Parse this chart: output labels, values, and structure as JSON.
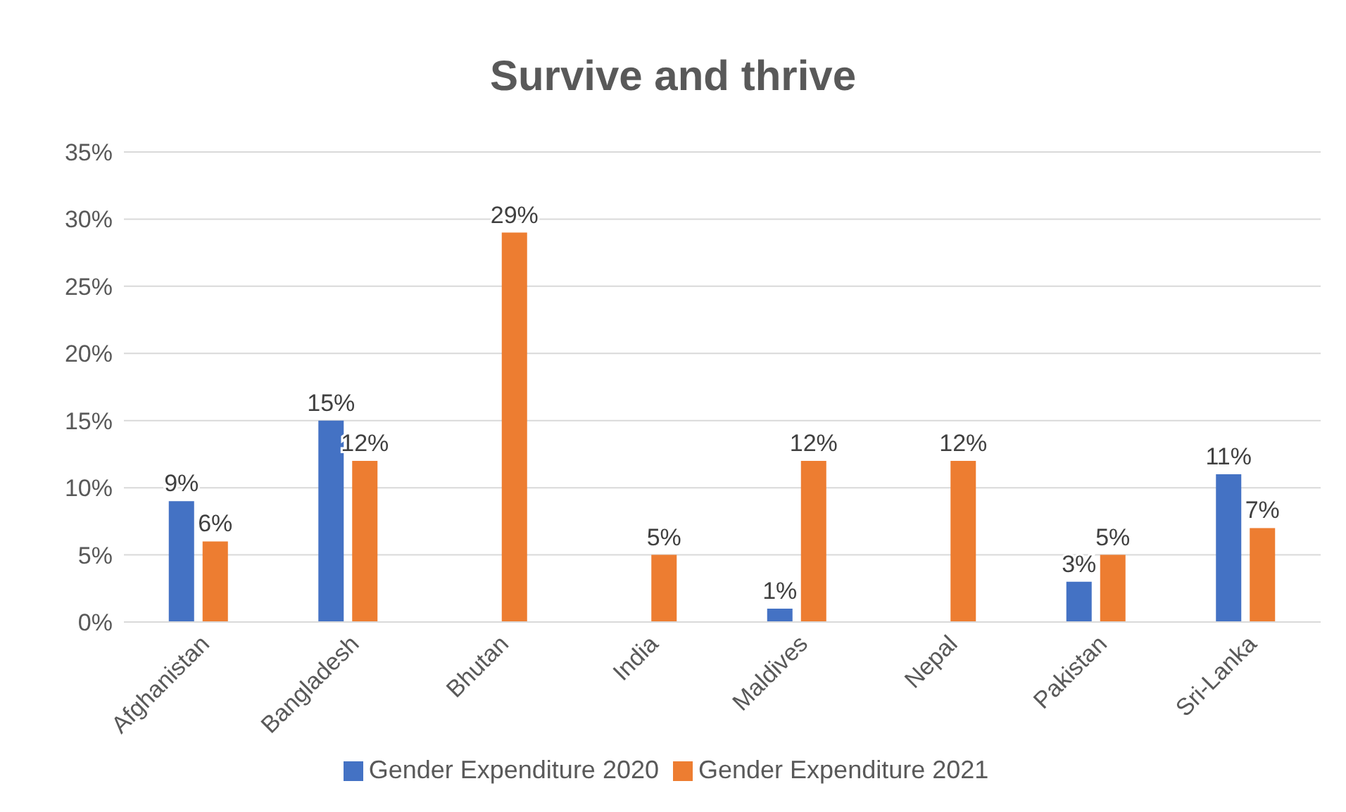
{
  "chart_data": {
    "type": "bar",
    "title": "Survive and thrive",
    "categories": [
      "Afghanistan",
      "Bangladesh",
      "Bhutan",
      "India",
      "Maldives",
      "Nepal",
      "Pakistan",
      "Sri-Lanka"
    ],
    "series": [
      {
        "name": "Gender Expenditure 2020",
        "color": "#4472c4",
        "values": [
          9,
          15,
          null,
          null,
          1,
          null,
          3,
          11
        ],
        "value_labels": [
          "9%",
          "15%",
          null,
          null,
          "1%",
          null,
          "3%",
          "11%"
        ]
      },
      {
        "name": "Gender Expenditure 2021",
        "color": "#ed7d31",
        "values": [
          6,
          12,
          29,
          5,
          12,
          12,
          5,
          7
        ],
        "value_labels": [
          "6%",
          "12%",
          "29%",
          "5%",
          "12%",
          "12%",
          "5%",
          "7%"
        ]
      }
    ],
    "ylim": [
      0,
      35
    ],
    "yticks": [
      {
        "value": 0,
        "label": "0%"
      },
      {
        "value": 5,
        "label": "5%"
      },
      {
        "value": 10,
        "label": "10%"
      },
      {
        "value": 15,
        "label": "15%"
      },
      {
        "value": 20,
        "label": "20%"
      },
      {
        "value": 25,
        "label": "25%"
      },
      {
        "value": 30,
        "label": "30%"
      },
      {
        "value": 35,
        "label": "35%"
      }
    ],
    "grid": "y",
    "legend": "bottom"
  }
}
